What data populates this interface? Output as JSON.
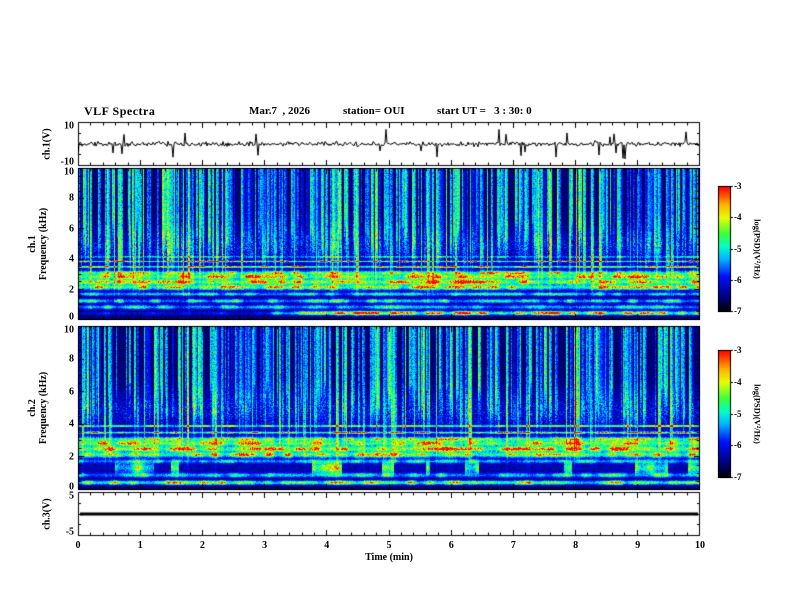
{
  "header": {
    "title": "VLF Spectra",
    "date": "Mar.7  , 2026",
    "station": "station= OUI",
    "start_ut": "start UT =   3 : 30: 0"
  },
  "x_axis": {
    "label": "Time  (min)",
    "min": 0,
    "max": 10,
    "tick_labels": [
      "0",
      "1",
      "2",
      "3",
      "4",
      "5",
      "6",
      "7",
      "8",
      "9",
      "10"
    ]
  },
  "panels": {
    "ch1_voltage": {
      "ylabel": "ch.1(V)",
      "ymin": -10,
      "ymax": 10,
      "tick_labels": [
        "10",
        "-10"
      ]
    },
    "ch1_spectrogram": {
      "ylabel_line1": "ch.1",
      "ylabel_line2": "Frequency  (kHz)",
      "ymin": 0,
      "ymax": 10,
      "tick_labels": [
        "10",
        "8",
        "6",
        "4",
        "2",
        "0"
      ]
    },
    "ch2_spectrogram": {
      "ylabel_line1": "ch.2",
      "ylabel_line2": "Frequency  (kHz)",
      "ymin": 0,
      "ymax": 10,
      "tick_labels": [
        "10",
        "8",
        "6",
        "4",
        "2",
        "0"
      ]
    },
    "ch3_voltage": {
      "ylabel": "ch.3(V)",
      "ymin": -5,
      "ymax": 5,
      "tick_labels": [
        "5",
        "-5"
      ]
    }
  },
  "colorbar": {
    "label": "log(PSD)(V²/Hz)",
    "tick_labels": [
      "-3",
      "-4",
      "-5",
      "-6",
      "-7"
    ],
    "min": -7,
    "max": -3,
    "stops": [
      [
        0.0,
        "#000006"
      ],
      [
        0.1,
        "#00006e"
      ],
      [
        0.28,
        "#0010ff"
      ],
      [
        0.42,
        "#00b4ff"
      ],
      [
        0.52,
        "#00ffc8"
      ],
      [
        0.62,
        "#3cff3c"
      ],
      [
        0.75,
        "#e6ff00"
      ],
      [
        0.85,
        "#ffb400"
      ],
      [
        0.93,
        "#ff5000"
      ],
      [
        1.0,
        "#ff0000"
      ]
    ]
  },
  "chart_data": [
    {
      "type": "line",
      "name": "ch1_voltage_waveform",
      "ylabel": "ch.1(V)",
      "xlim": [
        0,
        10
      ],
      "ylim": [
        -10,
        10
      ],
      "description": "broadband noise trace centered near 0 V, amplitude ~±1.5 V, with sporadic impulsive spikes reaching ~±7 V",
      "noise_amp_v": 1.3,
      "spike_count": 26,
      "spike_amp_v": 7,
      "seed": 3
    },
    {
      "type": "heatmap",
      "name": "ch1_spectrogram",
      "xlim": [
        0,
        10
      ],
      "flim_khz": [
        0,
        10
      ],
      "zlim_log_psd": [
        -7,
        -3
      ],
      "colormap": "jet",
      "seed": 11,
      "description": "VLF spectrogram: dark-blue background above 4 kHz crossed by dense vertical sferic streaks (green/yellow, some orange); quasi-horizontal emission bands between 0.3 and 4.2 kHz; red band near 0.45 kHz appearing after ~3 min",
      "streaks": {
        "count": 330,
        "strength": 3.3
      },
      "bands": [
        {
          "f": 0.45,
          "w": 0.13,
          "amp": 3.4,
          "gate_start": 0.3
        },
        {
          "f": 0.85,
          "w": 0.14,
          "amp": 1.7
        },
        {
          "f": 1.25,
          "w": 0.13,
          "amp": 1.9
        },
        {
          "f": 1.7,
          "w": 0.11,
          "amp": 1.6
        },
        {
          "f": 2.15,
          "w": 0.15,
          "amp": 2.5
        },
        {
          "f": 2.5,
          "w": 0.15,
          "amp": 2.7
        },
        {
          "f": 2.85,
          "w": 0.15,
          "amp": 2.5
        },
        {
          "f": 3.1,
          "w": 0.11,
          "amp": 2.2
        },
        {
          "f": 2.6,
          "w": 0.75,
          "amp": 0.9
        },
        {
          "f": 3.5,
          "w": 0.055,
          "amp": 3.0
        },
        {
          "f": 3.85,
          "w": 0.05,
          "amp": 2.6
        },
        {
          "f": 4.15,
          "w": 0.04,
          "amp": 1.7
        }
      ]
    },
    {
      "type": "heatmap",
      "name": "ch2_spectrogram",
      "xlim": [
        0,
        10
      ],
      "flim_khz": [
        0,
        10
      ],
      "zlim_log_psd": [
        -7,
        -3
      ],
      "colormap": "jet",
      "seed": 27,
      "description": "similar to ch.1: vertical sferic streaks above 4 kHz, banded emissions 0.3-4 kHz, patchy green blobs around 1-1.8 kHz",
      "streaks": {
        "count": 330,
        "strength": 3.3
      },
      "bands": [
        {
          "f": 0.45,
          "w": 0.13,
          "amp": 2.7
        },
        {
          "f": 0.9,
          "w": 0.14,
          "amp": 1.8
        },
        {
          "f": 1.35,
          "w": 0.35,
          "amp": 2.0,
          "patchy": true
        },
        {
          "f": 1.75,
          "w": 0.11,
          "amp": 1.5
        },
        {
          "f": 2.15,
          "w": 0.15,
          "amp": 2.5
        },
        {
          "f": 2.5,
          "w": 0.15,
          "amp": 2.7
        },
        {
          "f": 2.85,
          "w": 0.15,
          "amp": 2.4
        },
        {
          "f": 3.1,
          "w": 0.11,
          "amp": 2.1
        },
        {
          "f": 2.6,
          "w": 0.75,
          "amp": 0.9
        },
        {
          "f": 3.5,
          "w": 0.055,
          "amp": 2.9
        },
        {
          "f": 3.9,
          "w": 0.05,
          "amp": 2.5
        }
      ]
    },
    {
      "type": "line",
      "name": "ch3_voltage_waveform",
      "ylabel": "ch.3(V)",
      "xlim": [
        0,
        10
      ],
      "ylim": [
        -5,
        5
      ],
      "value_v": 0,
      "description": "constant flat line at 0 V (thick black trace)"
    }
  ]
}
